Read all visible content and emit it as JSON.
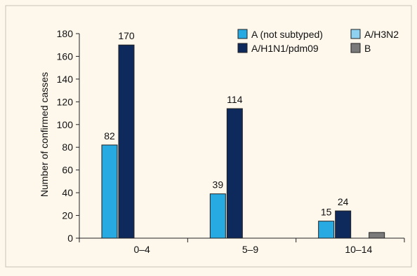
{
  "chart_data": {
    "type": "bar",
    "categories": [
      "0–4",
      "5–9",
      "10–14"
    ],
    "series": [
      {
        "name": "A (not subtyped)",
        "color": "#27a9e1",
        "values": [
          82,
          39,
          15
        ]
      },
      {
        "name": "A/H1N1/pdm09",
        "color": "#0e2a5c",
        "values": [
          170,
          114,
          24
        ]
      },
      {
        "name": "A/H3N2",
        "color": "#8fd1f0",
        "values": [
          0,
          0,
          0
        ]
      },
      {
        "name": "B",
        "color": "#7a7a7a",
        "values": [
          0,
          0,
          5
        ]
      }
    ],
    "data_labels": [
      {
        "category": "0–4",
        "series": "A (not subtyped)",
        "value": 82
      },
      {
        "category": "0–4",
        "series": "A/H1N1/pdm09",
        "value": 170
      },
      {
        "category": "5–9",
        "series": "A (not subtyped)",
        "value": 39
      },
      {
        "category": "5–9",
        "series": "A/H1N1/pdm09",
        "value": 114
      },
      {
        "category": "10–14",
        "series": "A (not subtyped)",
        "value": 15
      },
      {
        "category": "10–14",
        "series": "A/H1N1/pdm09",
        "value": 24
      }
    ],
    "ylabel": "Number of confirmed casses",
    "xlabel": "",
    "ylim": [
      0,
      180
    ],
    "yticks": [
      0,
      20,
      40,
      60,
      80,
      100,
      120,
      140,
      160,
      180
    ],
    "legend_position": "top-right",
    "grid": false
  }
}
